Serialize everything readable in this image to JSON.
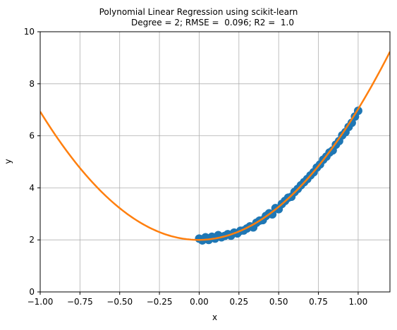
{
  "chart_data": {
    "type": "scatter",
    "title": "Polynomial Linear Regression using scikit-learn",
    "subtitle": "Degree = 2; RMSE =  0.096; R2 =  1.0",
    "xlabel": "x",
    "ylabel": "y",
    "xlim": [
      -1.0,
      1.2
    ],
    "ylim": [
      0,
      10
    ],
    "x_ticks": [
      "−1.00",
      "−0.75",
      "−0.50",
      "−0.25",
      "0.00",
      "0.25",
      "0.50",
      "0.75",
      "1.00"
    ],
    "x_tick_values": [
      -1.0,
      -0.75,
      -0.5,
      -0.25,
      0.0,
      0.25,
      0.5,
      0.75,
      1.0
    ],
    "y_ticks": [
      "0",
      "2",
      "4",
      "6",
      "8",
      "10"
    ],
    "y_tick_values": [
      0,
      2,
      4,
      6,
      8,
      10
    ],
    "grid": true,
    "legend": "none",
    "series": [
      {
        "type": "scatter",
        "color": "#1f77b4",
        "x": [
          0.0,
          0.02,
          0.04,
          0.06,
          0.08,
          0.1,
          0.12,
          0.14,
          0.16,
          0.18,
          0.2,
          0.22,
          0.24,
          0.26,
          0.28,
          0.3,
          0.32,
          0.34,
          0.36,
          0.38,
          0.4,
          0.42,
          0.44,
          0.46,
          0.48,
          0.5,
          0.52,
          0.54,
          0.56,
          0.58,
          0.6,
          0.62,
          0.64,
          0.66,
          0.68,
          0.7,
          0.72,
          0.74,
          0.76,
          0.78,
          0.8,
          0.82,
          0.84,
          0.86,
          0.88,
          0.9,
          0.92,
          0.94,
          0.96,
          0.98,
          1.0
        ],
        "y": [
          2.05,
          1.98,
          2.1,
          2.0,
          2.12,
          2.05,
          2.18,
          2.1,
          2.15,
          2.22,
          2.16,
          2.28,
          2.25,
          2.35,
          2.36,
          2.44,
          2.52,
          2.48,
          2.66,
          2.74,
          2.76,
          2.92,
          3.02,
          2.98,
          3.22,
          3.18,
          3.38,
          3.5,
          3.62,
          3.66,
          3.84,
          3.96,
          4.1,
          4.22,
          4.34,
          4.48,
          4.6,
          4.78,
          4.9,
          5.08,
          5.2,
          5.36,
          5.44,
          5.66,
          5.8,
          6.02,
          6.14,
          6.34,
          6.5,
          6.74,
          6.96
        ]
      },
      {
        "type": "line",
        "color": "#ff7f0e",
        "equation": "y = 2.0 + 0.05x + 4.98x^2",
        "coefficients": [
          2.0,
          0.05,
          4.98
        ],
        "x_range": [
          -1.0,
          1.2
        ]
      }
    ]
  }
}
